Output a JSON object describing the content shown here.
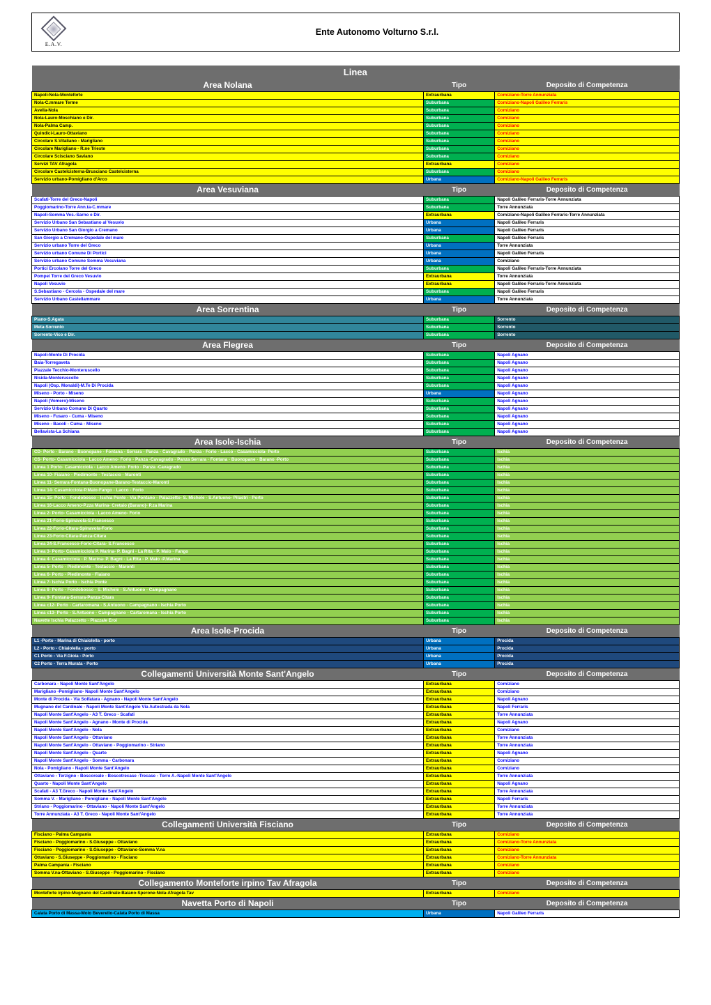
{
  "header": {
    "logo_text": "E.A.V.",
    "title": "Ente Autonomo Volturno S.r.l."
  },
  "linea_label": "Linea",
  "palette": {
    "yellow": {
      "bg": "#ffff00",
      "fg": "#000000"
    },
    "green": {
      "bg": "#00b050",
      "fg": "#ffffff"
    },
    "blue": {
      "bg": "#0070c0",
      "fg": "#ffffff"
    },
    "teal": {
      "bg": "#31869b",
      "fg": "#ffffff"
    },
    "darkteal": {
      "bg": "#215967",
      "fg": "#ffffff"
    },
    "cyan": {
      "bg": "#00b0f0",
      "fg": "#000000"
    },
    "lime": {
      "bg": "#92d050",
      "fg": "#ffffff"
    },
    "navy": {
      "bg": "#1f497d",
      "fg": "#ffffff"
    },
    "blueFg": {
      "bg": "#ffffff",
      "fg": "#0000ff"
    },
    "redFg": {
      "bg": "#ffffff",
      "fg": "#ff0000"
    },
    "black": {
      "bg": "#ffffff",
      "fg": "#000000"
    },
    "yellowRed": {
      "bg": "#ffff00",
      "fg": "#ff0000"
    }
  },
  "tipo_defaults": {
    "extraurbana": {
      "label": "Extraurbana",
      "color": "yellow"
    },
    "suburbana": {
      "label": "Suburbana",
      "color": "green"
    },
    "urbana": {
      "label": "Urbana",
      "color": "blue"
    }
  },
  "sections": [
    {
      "title": "Area Nolana",
      "tipo_label": "Tipo",
      "dep_label": "Deposito di Competenza",
      "linea_color": "yellow",
      "dep_color": "yellowRed",
      "rows": [
        {
          "linea": "Napoli-Nola-Monteforte",
          "tipo": "extraurbana",
          "dep": "Comiziano-Torre Annunziata"
        },
        {
          "linea": "Nola-C.mmare Terme",
          "tipo": "suburbana",
          "dep": "Comiziano-Napoli Galileo Ferraris"
        },
        {
          "linea": "Avella-Nola",
          "tipo": "suburbana",
          "dep": "Comiziano"
        },
        {
          "linea": "Nola-Lauro-Moschiano e Dir.",
          "tipo": "suburbana",
          "dep": "Comiziano"
        },
        {
          "linea": "Nola-Palma Camp.",
          "tipo": "suburbana",
          "dep": "Comiziano"
        },
        {
          "linea": "Quindici-Lauro-Ottaviano",
          "tipo": "suburbana",
          "dep": "Comiziano"
        },
        {
          "linea": "Circolare S.Vitaliano - Marigliano",
          "tipo": "suburbana",
          "dep": "Comiziano"
        },
        {
          "linea": "Circolare Marigliano - R.ne Trieste",
          "tipo": "suburbana",
          "dep": "Comiziano"
        },
        {
          "linea": "Circolare Scisciano Saviano",
          "tipo": "suburbana",
          "dep": "Comiziano"
        },
        {
          "linea": "Servizi TAV Afragola",
          "tipo": "extraurbana",
          "dep": "Comiziano"
        },
        {
          "linea": "Circolare Castelcisterna-Brusciano Castelcisterna",
          "tipo": "suburbana",
          "dep": "Comiziano"
        },
        {
          "linea": "Servizio urbano-Pomigliano d'Arco",
          "tipo": "urbana",
          "dep": "Comiziano-Napoli Galileo Ferraris"
        }
      ]
    },
    {
      "title": "Area Vesuviana",
      "tipo_label": "Tipo",
      "dep_label": "Deposito di Competenza",
      "linea_color": "blueFg",
      "dep_color": "black",
      "rows": [
        {
          "linea": "Scafati-Torre del Greco-Napoli",
          "tipo": "suburbana",
          "dep": "Napoli Galileo Ferraris-Torre Annunziata"
        },
        {
          "linea": "Poggiomarino-Torre Ann.ta-C.mmare",
          "tipo": "suburbana",
          "dep": "Torre Annunziata"
        },
        {
          "linea": "Napoli-Somma Ves.-Sarno e Dir.",
          "tipo": "extraurbana",
          "dep": "Comiziano-Napoli Galileo Ferraris-Torre Annunziata"
        },
        {
          "linea": "Servizio Urbano San Sebastiano al Vesuvio",
          "tipo": "urbana",
          "dep": "Napoli Galileo Ferraris"
        },
        {
          "linea": "Servizio Urbano San Giorgio a Cremano",
          "tipo": "urbana",
          "dep": "Napoli Galileo Ferraris"
        },
        {
          "linea": "San Giorgio a Cremano-Ospedale del mare",
          "tipo": "suburbana",
          "dep": "Napoli Galileo Ferraris"
        },
        {
          "linea": "Servizio urbano Torre del Greco",
          "tipo": "urbana",
          "dep": "Torre Annunziata"
        },
        {
          "linea": "Servizio urbano Comune Di Portici",
          "tipo": "urbana",
          "dep": "Napoli Galileo Ferraris"
        },
        {
          "linea": "Servizio urbano Comune Somma Vesuviana",
          "tipo": "urbana",
          "dep": "Comiziano"
        },
        {
          "linea": "Portici Ercolano Torre del Greco",
          "tipo": "suburbana",
          "dep": "Napoli Galileo Ferraris-Torre Annunziata"
        },
        {
          "linea": "Pompei Torre del Greco Vesuvio",
          "tipo": "extraurbana",
          "dep": "Torre Annunziata"
        },
        {
          "linea": "Napoli Vesuvio",
          "tipo": "extraurbana",
          "dep": "Napoli Galileo Ferraris-Torre Annunziata"
        },
        {
          "linea": "S.Sebastiano - Cercola - Ospedale del mare",
          "tipo": "suburbana",
          "dep": "Napoli Galileo Ferraris"
        },
        {
          "linea": "Servizio Urbano Castellammare",
          "tipo": "urbana",
          "dep": "Torre Annunziata"
        }
      ]
    },
    {
      "title": "Area Sorrentina",
      "tipo_label": "Tipo",
      "dep_label": "Deposito di Competenza",
      "linea_color": "teal",
      "dep_color": "darkteal",
      "rows": [
        {
          "linea": "Piano-S.Agata",
          "tipo": "suburbana",
          "dep": "Sorrento"
        },
        {
          "linea": "Meta-Sorrento",
          "tipo": "suburbana",
          "dep": "Sorrento"
        },
        {
          "linea": "Sorrento-Vico e Dir.",
          "tipo": "suburbana",
          "dep": "Sorrento"
        }
      ]
    },
    {
      "title": "Area Flegrea",
      "tipo_label": "Tipo",
      "dep_label": "Deposito di Competenza",
      "linea_color": "blueFg",
      "dep_color": "blueFg",
      "rows": [
        {
          "linea": "Napoli-Monte Di Procida",
          "tipo": "suburbana",
          "dep": "Napoli Agnano"
        },
        {
          "linea": "Baia-Torregaveta",
          "tipo": "suburbana",
          "dep": "Napoli Agnano"
        },
        {
          "linea": "Piazzale Tecchio-Monteruscello",
          "tipo": "suburbana",
          "dep": "Napoli Agnano"
        },
        {
          "linea": "Nisida-Monteruscello",
          "tipo": "suburbana",
          "dep": "Napoli Agnano"
        },
        {
          "linea": "Napoli (Osp. Monaldi)-M.Te Di Procida",
          "tipo": "suburbana",
          "dep": "Napoli Agnano"
        },
        {
          "linea": "Miseno - Porto - Miseno",
          "tipo": "urbana",
          "dep": "Napoli Agnano"
        },
        {
          "linea": "Napoli (Vomero)-Miseno",
          "tipo": "suburbana",
          "dep": "Napoli Agnano"
        },
        {
          "linea": "Servizio Urbano Comune Di Quarto",
          "tipo": "suburbana",
          "dep": "Napoli Agnano"
        },
        {
          "linea": "Miseno - Fusaro - Cuma - Miseno",
          "tipo": "suburbana",
          "dep": "Napoli Agnano"
        },
        {
          "linea": "Miseno - Bacoli - Cuma - Miseno",
          "tipo": "suburbana",
          "dep": "Napoli Agnano"
        },
        {
          "linea": "Bellavista-La Schiana",
          "tipo": "suburbana",
          "dep": "Napoli Agnano"
        }
      ]
    },
    {
      "title": "Area Isole-Ischia",
      "tipo_label": "Tipo",
      "dep_label": "Deposito di Competenza",
      "linea_color": "lime",
      "dep_color": "lime",
      "rows": [
        {
          "linea": "CD- Porto - Barano - Buonopane - Fontana - Serrara - Panza - Cavagrado - Panza - Forio - Lacco - Casamicciola- Porto",
          "tipo": "suburbana",
          "dep": "Ischia"
        },
        {
          "linea": "CS- Porto- Casamicciola - Lacco Ameno- Forio - Panza -Cavagrado - Panza Serrara - Fontana - Buonopane - Barano -Porto",
          "tipo": "suburbana",
          "dep": "Ischia"
        },
        {
          "linea": "Linea 1 Porto- Casamicciola - Lacco Ameno- Forio - Panza -Cavagrado",
          "tipo": "suburbana",
          "dep": "Ischia"
        },
        {
          "linea": "Linea 10- Fiaiano - Piedimonte - Testaccio - Maronti",
          "tipo": "suburbana",
          "dep": "Ischia"
        },
        {
          "linea": "Linea 11- Serrara-Fontana-Buonopane-Barano-Testaccio-Maronti",
          "tipo": "suburbana",
          "dep": "Ischia"
        },
        {
          "linea": "Linea 14- Casamicciola-P.Maio-Fango - Lacco - Forio",
          "tipo": "suburbana",
          "dep": "Ischia"
        },
        {
          "linea": "Linea 15- Porto - Fondobosso - Ischia Ponte - Via Pontano - Palazzetto- S. Michele - S.Antuono- Pilastri - Porto",
          "tipo": "suburbana",
          "dep": "Ischia"
        },
        {
          "linea": "Linea 16-Lacco Ameno-P.zza Marina- Cretaio (Barano)- P.za Marina",
          "tipo": "suburbana",
          "dep": "Ischia"
        },
        {
          "linea": "Linea 2- Porto- Casamicciola - Lacco Ameno- Forio",
          "tipo": "suburbana",
          "dep": "Ischia"
        },
        {
          "linea": "Linea 21-Forio-Spinavola-S.Francesco",
          "tipo": "suburbana",
          "dep": "Ischia"
        },
        {
          "linea": "Linea 22-Forio-Citara-Spinavola-Forio",
          "tipo": "suburbana",
          "dep": "Ischia"
        },
        {
          "linea": "Linea 23-Forio-Citara-Panza-Citara",
          "tipo": "suburbana",
          "dep": "Ischia"
        },
        {
          "linea": "Linea 24-S.Francesco-Forio-Citara- S.Francesco",
          "tipo": "suburbana",
          "dep": "Ischia"
        },
        {
          "linea": "Linea 3- Porto- Casamicciola P. Marina- P. Bagni - La Rita - P. Maio - Fango",
          "tipo": "suburbana",
          "dep": "Ischia"
        },
        {
          "linea": "Linea 4- Casamicciola - P. Marina- P. Bagni - La Rita - P. Maio -P.Marina",
          "tipo": "suburbana",
          "dep": "Ischia"
        },
        {
          "linea": "Linea 5- Porto - Piedimonte - Testaccio - Maronti",
          "tipo": "suburbana",
          "dep": "Ischia"
        },
        {
          "linea": "Linea 6- Porto - Piedimonte - Fiaiano",
          "tipo": "suburbana",
          "dep": "Ischia"
        },
        {
          "linea": "Linea 7- Ischia Porto  - Ischia Ponte",
          "tipo": "suburbana",
          "dep": "Ischia"
        },
        {
          "linea": "Linea 8- Porto - Fondobosso - S. Michele - S.Antuono - Campagnano",
          "tipo": "suburbana",
          "dep": "Ischia"
        },
        {
          "linea": "Linea 9- Fontana-Serrara-Panza-Citara",
          "tipo": "suburbana",
          "dep": "Ischia"
        },
        {
          "linea": "Linea c12- Porto - Cartaromana - S.Antuono - Campagnano - Ischia Porto",
          "tipo": "suburbana",
          "dep": "Ischia"
        },
        {
          "linea": "Linea c13- Porto - S.Antuono - Campagnano - Cartaromana - Ischia Porto",
          "tipo": "suburbana",
          "dep": "Ischia"
        },
        {
          "linea": "Navette Ischia Palazzetto - Piazzale Eroi",
          "tipo": "suburbana",
          "dep": "Ischia"
        }
      ]
    },
    {
      "title": "Area Isole-Procida",
      "tipo_label": "Tipo",
      "dep_label": "Deposito di Competenza",
      "linea_color": "navy",
      "dep_color": "navy",
      "rows": [
        {
          "linea": "L1 -Porto - Marina di Chiaiolella - porto",
          "tipo": "urbana",
          "dep": "Procida"
        },
        {
          "linea": "L2 - Porto - Chiaiolella - porto",
          "tipo": "urbana",
          "dep": "Procida"
        },
        {
          "linea": "C1 Porto - Via F.Gioia - Porto",
          "tipo": "urbana",
          "dep": "Procida"
        },
        {
          "linea": "C2 Porto - Terra Murata - Porto",
          "tipo": "urbana",
          "dep": "Procida"
        }
      ]
    },
    {
      "title": "Collegamenti Università Monte Sant'Angelo",
      "tipo_label": "Tipo",
      "dep_label": "Deposito di Competenza",
      "linea_color": "blueFg",
      "dep_color": "blueFg",
      "rows": [
        {
          "linea": "Carbonara - Napoli Monte Sant'Angelo",
          "tipo": "extraurbana",
          "dep": "Comiziano"
        },
        {
          "linea": "Marigliano -Pomigliano- Napoli Monte Sant'Angelo",
          "tipo": "extraurbana",
          "dep": "Comiziano"
        },
        {
          "linea": "Monte di Procida - Via Solfatara - Agnano - Napoli Monte Sant'Angelo",
          "tipo": "extraurbana",
          "dep": "Napoli Agnano"
        },
        {
          "linea": "Mugnano del Cardinale  - Napoli Monte Sant'Angelo Via Autostrada da Nola",
          "tipo": "extraurbana",
          "dep": "Napoli Ferraris"
        },
        {
          "linea": "Napoli Monte Sant'Angelo - A3 T. Greco - Scafati",
          "tipo": "extraurbana",
          "dep": "Torre Annunziata"
        },
        {
          "linea": "Napoli Monte Sant'Angelo - Agnano - Monte di Procida",
          "tipo": "extraurbana",
          "dep": "Napoli Agnano"
        },
        {
          "linea": "Napoli Monte Sant'Angelo - Nola",
          "tipo": "extraurbana",
          "dep": "Comiziano"
        },
        {
          "linea": "Napoli Monte Sant'Angelo - Ottaviano",
          "tipo": "extraurbana",
          "dep": "Torre Annunziata"
        },
        {
          "linea": "Napoli Monte Sant'Angelo - Ottaviano - Poggiomarino - Striano",
          "tipo": "extraurbana",
          "dep": "Torre Annunziata"
        },
        {
          "linea": "Napoli Monte Sant'Angelo - Quarto",
          "tipo": "extraurbana",
          "dep": "Napoli Agnano"
        },
        {
          "linea": "Napoli Monte Sant'Angelo - Somma - Carbonara",
          "tipo": "extraurbana",
          "dep": "Comiziano"
        },
        {
          "linea": "Nola - Pomigliano - Napoli Monte Sant'Angelo",
          "tipo": "extraurbana",
          "dep": "Comiziano"
        },
        {
          "linea": "Ottaviano - Terzigno - Boscoreale - Boscotrecase -Trecase - Torre A.-Napoli Monte Sant'Angelo",
          "tipo": "extraurbana",
          "dep": "Torre Annunziata"
        },
        {
          "linea": "Quarto - Napoli Monte Sant'Angelo",
          "tipo": "extraurbana",
          "dep": "Napoli Agnano"
        },
        {
          "linea": "Scafati - A3 T.Greco - Napoli Monte Sant'Angelo",
          "tipo": "extraurbana",
          "dep": "Torre Annunziata"
        },
        {
          "linea": "Somma V. - Marigliano - Pomigliano - Napoli Monte Sant'Angelo",
          "tipo": "extraurbana",
          "dep": "Napoli Ferraris"
        },
        {
          "linea": "Striano - Poggiomarino - Ottaviano - Napoli Monte Sant'Angelo",
          "tipo": "extraurbana",
          "dep": "Torre Annunziata"
        },
        {
          "linea": "Torre Annunziata - A3 T. Greco - Napoli Monte Sant'Angelo",
          "tipo": "extraurbana",
          "dep": "Torre Annunziata"
        }
      ]
    },
    {
      "title": "Collegamenti Università Fisciano",
      "tipo_label": "Tipo",
      "dep_label": "Deposito di Competenza",
      "linea_color": "yellow",
      "dep_color": "yellowRed",
      "rows": [
        {
          "linea": "Fisciano - Palma Campania",
          "tipo": "extraurbana",
          "dep": "Comiziano",
          "tipo_color_override": "yellow"
        },
        {
          "linea": "Fisciano - Poggiomarino - S.Giuseppe - Ottaviano",
          "tipo": "extraurbana",
          "dep": "Comiziano-Torre Annunziata",
          "tipo_color_override": "yellow"
        },
        {
          "linea": "Fisciano - Poggiomarino - S.Giuseppe - Ottaviano-Somma V.na",
          "tipo": "extraurbana",
          "dep": "Comiziano",
          "tipo_color_override": "yellow"
        },
        {
          "linea": "Ottaviano - S.Giuseppe - Poggiomarino - Fisciano",
          "tipo": "extraurbana",
          "dep": "Comiziano-Torre Annunziata",
          "tipo_color_override": "yellow"
        },
        {
          "linea": "Palma Campania - Fisciano",
          "tipo": "extraurbana",
          "dep": "Comiziano",
          "tipo_color_override": "yellow"
        },
        {
          "linea": "Somma V.na-Ottaviano - S.Giuseppe - Poggiomarino - Fisciano",
          "tipo": "extraurbana",
          "dep": "Comiziano",
          "tipo_color_override": "yellow"
        }
      ]
    },
    {
      "title": "Collegamento Monteforte irpino Tav Afragola",
      "tipo_label": "Tipo",
      "dep_label": "Deposito di Competenza",
      "linea_color": "yellow",
      "dep_color": "yellowRed",
      "rows": [
        {
          "linea": "Monteforte irpino-Mugnano del Cardinale-Baiano-Sperone-Nola-Afragola Tav",
          "tipo": "extraurbana",
          "dep": "Comiziano",
          "tipo_color_override": "yellow"
        }
      ]
    },
    {
      "title": "Navetta Porto di Napoli",
      "tipo_label": "Tipo",
      "dep_label": "Deposito di Competenza",
      "linea_color": "cyan",
      "dep_color": "blueFg",
      "rows": [
        {
          "linea": "Calata Porto di Massa-Molo Beverello-Calata Porto di Massa",
          "tipo": "urbana",
          "dep": "Napoli Galileo Ferraris"
        }
      ]
    }
  ]
}
